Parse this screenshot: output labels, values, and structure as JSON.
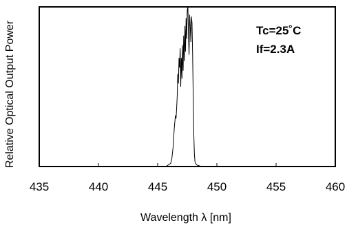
{
  "chart_data": {
    "type": "line",
    "title": "",
    "xlabel": "Wavelength λ [nm]",
    "ylabel": "Relative Optical Output Power",
    "xlim": [
      435,
      460
    ],
    "ylim": [
      0,
      1
    ],
    "x_ticks": [
      "435",
      "440",
      "445",
      "450",
      "455",
      "460"
    ],
    "y_ticks_labeled": false,
    "grid": false,
    "annotations": [
      "Tc=25˚C",
      "If=2.3A"
    ],
    "series": [
      {
        "name": "",
        "x": [
          445.7,
          445.9,
          446.1,
          446.2,
          446.3,
          446.4,
          446.5,
          446.55,
          446.6,
          446.65,
          446.7,
          446.75,
          446.8,
          446.85,
          446.9,
          446.95,
          447.0,
          447.05,
          447.1,
          447.15,
          447.2,
          447.25,
          447.3,
          447.35,
          447.4,
          447.45,
          447.5,
          447.55,
          447.6,
          447.65,
          447.7,
          447.75,
          447.8,
          447.85,
          447.9,
          447.95,
          448.0,
          448.05,
          448.1,
          448.15,
          448.2,
          448.3,
          448.5,
          448.7,
          449.0
        ],
        "values": [
          0.0,
          0.01,
          0.02,
          0.05,
          0.12,
          0.24,
          0.32,
          0.3,
          0.36,
          0.44,
          0.58,
          0.52,
          0.68,
          0.62,
          0.74,
          0.5,
          0.68,
          0.55,
          0.76,
          0.6,
          0.82,
          0.66,
          0.88,
          0.72,
          0.93,
          0.8,
          0.98,
          1.0,
          0.84,
          0.7,
          0.95,
          0.88,
          0.78,
          0.94,
          0.9,
          0.72,
          0.45,
          0.2,
          0.08,
          0.03,
          0.02,
          0.01,
          0.005,
          0.0,
          0.0
        ]
      }
    ]
  }
}
